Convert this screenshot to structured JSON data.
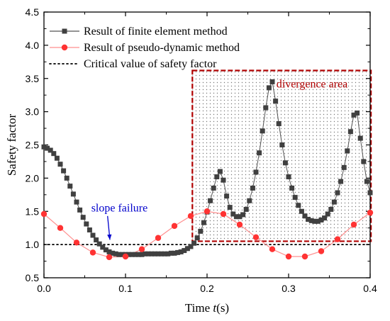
{
  "chart_data": {
    "type": "line",
    "xlabel": {
      "prefix": "Time ",
      "var": "t",
      "suffix": "(s)"
    },
    "ylabel": "Safety factor",
    "xlim": [
      0.0,
      0.4
    ],
    "ylim": [
      0.5,
      4.5
    ],
    "xticks": [
      "0.0",
      "0.1",
      "0.2",
      "0.3",
      "0.4"
    ],
    "yticks": [
      "0.5",
      "1.0",
      "1.5",
      "2.0",
      "2.5",
      "3.0",
      "3.5",
      "4.0",
      "4.5"
    ],
    "legend_position": "top-left",
    "grid": false,
    "colors": {
      "fem": "#404040",
      "pdm": "#ff3333",
      "pdm_line": "#ff8f8f",
      "critical": "#000000",
      "divergence": "#b00000",
      "annotation_blue": "#0000cc"
    },
    "series": [
      {
        "name": "Result of finite element method",
        "marker": "square",
        "x": [
          0.0,
          0.004,
          0.008,
          0.012,
          0.016,
          0.02,
          0.024,
          0.028,
          0.032,
          0.036,
          0.04,
          0.044,
          0.048,
          0.052,
          0.056,
          0.06,
          0.064,
          0.068,
          0.072,
          0.076,
          0.08,
          0.084,
          0.088,
          0.092,
          0.096,
          0.1,
          0.104,
          0.108,
          0.112,
          0.116,
          0.12,
          0.124,
          0.128,
          0.132,
          0.136,
          0.14,
          0.144,
          0.148,
          0.152,
          0.156,
          0.16,
          0.164,
          0.168,
          0.172,
          0.176,
          0.18,
          0.184,
          0.188,
          0.192,
          0.196,
          0.2,
          0.204,
          0.208,
          0.212,
          0.216,
          0.22,
          0.224,
          0.228,
          0.232,
          0.236,
          0.24,
          0.244,
          0.248,
          0.252,
          0.256,
          0.26,
          0.264,
          0.268,
          0.272,
          0.276,
          0.28,
          0.284,
          0.288,
          0.292,
          0.296,
          0.3,
          0.304,
          0.308,
          0.312,
          0.316,
          0.32,
          0.324,
          0.328,
          0.332,
          0.336,
          0.34,
          0.344,
          0.348,
          0.352,
          0.356,
          0.36,
          0.364,
          0.368,
          0.372,
          0.376,
          0.38,
          0.384,
          0.388,
          0.392,
          0.396,
          0.4
        ],
        "y": [
          2.47,
          2.45,
          2.42,
          2.37,
          2.3,
          2.21,
          2.11,
          2.0,
          1.88,
          1.76,
          1.64,
          1.52,
          1.41,
          1.31,
          1.22,
          1.14,
          1.07,
          1.01,
          0.96,
          0.92,
          0.89,
          0.87,
          0.86,
          0.85,
          0.85,
          0.85,
          0.85,
          0.85,
          0.85,
          0.85,
          0.85,
          0.86,
          0.86,
          0.86,
          0.86,
          0.86,
          0.86,
          0.86,
          0.86,
          0.87,
          0.87,
          0.88,
          0.89,
          0.91,
          0.94,
          0.97,
          1.02,
          1.1,
          1.2,
          1.33,
          1.49,
          1.66,
          1.85,
          2.02,
          2.1,
          1.97,
          1.73,
          1.56,
          1.46,
          1.42,
          1.42,
          1.45,
          1.53,
          1.66,
          1.85,
          2.09,
          2.38,
          2.71,
          3.06,
          3.36,
          3.45,
          3.16,
          2.82,
          2.5,
          2.23,
          2.02,
          1.85,
          1.71,
          1.59,
          1.5,
          1.43,
          1.38,
          1.36,
          1.35,
          1.35,
          1.37,
          1.4,
          1.46,
          1.53,
          1.64,
          1.78,
          1.95,
          2.16,
          2.41,
          2.7,
          2.95,
          2.98,
          2.6,
          2.25,
          1.95,
          1.78
        ]
      },
      {
        "name": "Result of pseudo-dynamic method",
        "marker": "circle",
        "x": [
          0.0,
          0.02,
          0.04,
          0.06,
          0.08,
          0.1,
          0.12,
          0.14,
          0.16,
          0.18,
          0.2,
          0.22,
          0.24,
          0.26,
          0.28,
          0.3,
          0.32,
          0.34,
          0.36,
          0.38,
          0.4
        ],
        "y": [
          1.46,
          1.25,
          1.03,
          0.88,
          0.81,
          0.82,
          0.93,
          1.1,
          1.28,
          1.43,
          1.5,
          1.46,
          1.3,
          1.11,
          0.93,
          0.82,
          0.82,
          0.9,
          1.08,
          1.3,
          1.48
        ]
      },
      {
        "name": "Critical value of safety factor",
        "style": "dotted",
        "x": [
          0.0,
          0.4
        ],
        "y": [
          1.0,
          1.0
        ]
      }
    ],
    "annotations": [
      {
        "text": "divergence area",
        "x": 0.285,
        "y": 3.42
      },
      {
        "text": "slope failure",
        "x": 0.058,
        "y": 1.55,
        "arrow_to": [
          0.08,
          1.05
        ]
      }
    ],
    "divergence_region": {
      "x": [
        0.182,
        0.401
      ],
      "y": [
        1.05,
        3.62
      ]
    }
  }
}
